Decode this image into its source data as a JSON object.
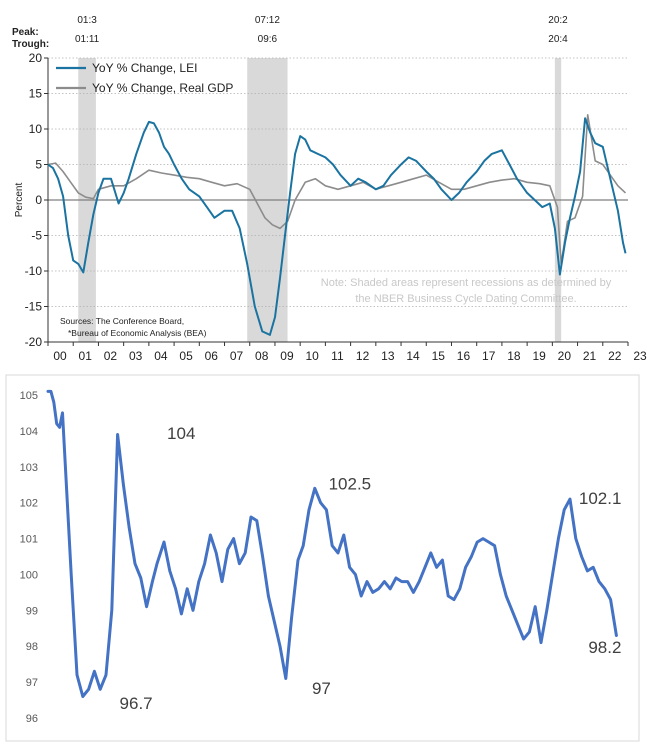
{
  "chart_data": [
    {
      "type": "line",
      "peak_label": "Peak:",
      "trough_label": "Trough:",
      "ylabel": "Percent",
      "ylim": [
        -20,
        20
      ],
      "y_ticks": [
        "20",
        "15",
        "10",
        "5",
        "0",
        "-5",
        "-10",
        "-15",
        "-20"
      ],
      "x_ticks": [
        "00",
        "01",
        "02",
        "03",
        "04",
        "05",
        "06",
        "07",
        "08",
        "09",
        "10",
        "11",
        "12",
        "13",
        "14",
        "15",
        "16",
        "17",
        "18",
        "19",
        "20",
        "21",
        "22",
        "23"
      ],
      "xlim": [
        2000.0,
        2023.0
      ],
      "recessions": [
        {
          "start": 2001.2,
          "end": 2001.9,
          "peak": "01:3",
          "trough": "01:11"
        },
        {
          "start": 2007.9,
          "end": 2009.5,
          "peak": "07:12",
          "trough": "09:6"
        },
        {
          "start": 2020.1,
          "end": 2020.35,
          "peak": "20:2",
          "trough": "20:4"
        }
      ],
      "legend_position": "top-left",
      "note": "Note: Shaded areas represent recessions as determined by the NBER Business Cycle Dating Committee.",
      "sources_line1": "Sources: The Conference Board,",
      "sources_line2": "*Bureau of Economic Analysis (BEA)",
      "colors": {
        "lei": "#1a73a0",
        "gdp": "#8c8c8c",
        "recession": "#d9d9d9",
        "zero": "#7f7f7f",
        "grid": "#b0b0b0"
      },
      "series": [
        {
          "name": "YoY % Change, LEI",
          "x": [
            2000.0,
            2000.2,
            2000.4,
            2000.6,
            2000.8,
            2001.0,
            2001.2,
            2001.4,
            2001.6,
            2001.8,
            2002.0,
            2002.2,
            2002.5,
            2002.8,
            2003.0,
            2003.2,
            2003.5,
            2003.8,
            2004.0,
            2004.2,
            2004.4,
            2004.6,
            2004.8,
            2005.0,
            2005.3,
            2005.6,
            2006.0,
            2006.3,
            2006.6,
            2007.0,
            2007.3,
            2007.6,
            2007.9,
            2008.2,
            2008.5,
            2008.8,
            2009.0,
            2009.2,
            2009.4,
            2009.6,
            2009.8,
            2010.0,
            2010.2,
            2010.4,
            2010.7,
            2011.0,
            2011.3,
            2011.6,
            2012.0,
            2012.3,
            2012.6,
            2013.0,
            2013.3,
            2013.6,
            2014.0,
            2014.3,
            2014.6,
            2015.0,
            2015.3,
            2015.6,
            2016.0,
            2016.3,
            2016.6,
            2017.0,
            2017.3,
            2017.6,
            2018.0,
            2018.3,
            2018.6,
            2019.0,
            2019.3,
            2019.6,
            2019.9,
            2020.1,
            2020.3,
            2020.5,
            2020.7,
            2020.9,
            2021.1,
            2021.3,
            2021.5,
            2021.7,
            2022.0,
            2022.3,
            2022.6,
            2022.8,
            2022.9
          ],
          "values": [
            5.0,
            4.5,
            3.0,
            0.5,
            -5.0,
            -8.5,
            -9.0,
            -10.2,
            -6.0,
            -2.0,
            1.0,
            3.0,
            3.0,
            -0.5,
            1.0,
            3.0,
            6.5,
            9.5,
            11.0,
            10.8,
            9.5,
            7.5,
            6.5,
            5.0,
            3.0,
            1.5,
            0.5,
            -1.0,
            -2.5,
            -1.5,
            -1.5,
            -4.0,
            -9.0,
            -15.0,
            -18.5,
            -19.0,
            -16.5,
            -11.0,
            -5.0,
            1.0,
            6.5,
            9.0,
            8.5,
            7.0,
            6.5,
            6.0,
            5.0,
            3.5,
            2.0,
            3.0,
            2.5,
            1.5,
            2.0,
            3.5,
            5.0,
            6.0,
            5.5,
            4.0,
            3.0,
            1.5,
            0.0,
            1.0,
            2.5,
            4.0,
            5.5,
            6.5,
            7.0,
            5.0,
            3.0,
            1.0,
            0.0,
            -1.0,
            -0.5,
            -4.0,
            -10.5,
            -6.0,
            -2.5,
            0.5,
            4.0,
            11.5,
            9.5,
            8.0,
            7.5,
            3.0,
            -1.5,
            -6.0,
            -7.5
          ]
        },
        {
          "name": "YoY % Change, Real GDP",
          "x": [
            2000.0,
            2000.3,
            2000.6,
            2000.9,
            2001.2,
            2001.5,
            2001.8,
            2002.0,
            2002.5,
            2003.0,
            2003.5,
            2004.0,
            2004.5,
            2005.0,
            2005.5,
            2006.0,
            2006.5,
            2007.0,
            2007.5,
            2008.0,
            2008.3,
            2008.6,
            2008.9,
            2009.2,
            2009.5,
            2009.8,
            2010.2,
            2010.6,
            2011.0,
            2011.5,
            2012.0,
            2012.5,
            2013.0,
            2013.5,
            2014.0,
            2014.5,
            2015.0,
            2015.5,
            2016.0,
            2016.5,
            2017.0,
            2017.5,
            2018.0,
            2018.5,
            2019.0,
            2019.5,
            2019.9,
            2020.2,
            2020.35,
            2020.6,
            2020.9,
            2021.2,
            2021.4,
            2021.7,
            2022.0,
            2022.3,
            2022.6,
            2022.9
          ],
          "values": [
            5.0,
            5.2,
            4.0,
            2.5,
            1.0,
            0.4,
            0.2,
            1.5,
            2.0,
            2.0,
            3.0,
            4.2,
            3.8,
            3.5,
            3.2,
            3.0,
            2.5,
            2.0,
            2.3,
            1.5,
            -0.5,
            -2.5,
            -3.5,
            -4.0,
            -3.0,
            0.0,
            2.5,
            3.0,
            2.0,
            1.5,
            2.0,
            2.5,
            1.5,
            2.0,
            2.5,
            3.0,
            3.5,
            2.5,
            1.5,
            1.5,
            2.0,
            2.5,
            2.8,
            3.0,
            2.5,
            2.3,
            2.0,
            -1.0,
            -9.0,
            -3.0,
            -2.5,
            0.5,
            12.0,
            5.5,
            5.0,
            3.5,
            2.0,
            1.0
          ]
        }
      ]
    },
    {
      "type": "line",
      "ylim": [
        96,
        105
      ],
      "y_ticks": [
        "105",
        "104",
        "103",
        "102",
        "101",
        "100",
        "99",
        "98",
        "97",
        "96"
      ],
      "xlim": [
        0,
        100
      ],
      "color": "#4472c4",
      "annotations": [
        {
          "text": "104",
          "x": 18.8,
          "y": 104.0
        },
        {
          "text": "96.7",
          "x": 11.3,
          "y": 96.7
        },
        {
          "text": "102.5",
          "x": 47.0,
          "y": 102.5
        },
        {
          "text": "97",
          "x": 43.1,
          "y": 97.0
        },
        {
          "text": "102.1",
          "x": 90.5,
          "y": 102.1
        },
        {
          "text": "98.2",
          "x": 96.7,
          "y": 98.2
        }
      ],
      "series": [
        {
          "x": [
            0.0,
            0.5,
            1.0,
            1.5,
            2.0,
            2.5,
            3.0,
            4.0,
            5.0,
            6.0,
            7.0,
            8.0,
            9.0,
            10.0,
            11.0,
            12.0,
            13.0,
            14.0,
            15.0,
            16.0,
            17.0,
            18.0,
            18.8,
            20.0,
            21.0,
            22.0,
            23.0,
            24.0,
            25.0,
            26.0,
            27.0,
            28.0,
            29.0,
            30.0,
            31.0,
            32.0,
            33.0,
            34.0,
            35.0,
            36.0,
            37.0,
            38.0,
            39.0,
            40.0,
            41.0,
            42.0,
            43.1,
            44.0,
            45.0,
            46.0,
            47.0,
            48.0,
            49.0,
            50.0,
            51.0,
            52.0,
            53.0,
            54.0,
            55.0,
            56.0,
            57.0,
            58.0,
            59.0,
            60.0,
            61.0,
            62.0,
            63.0,
            64.0,
            65.0,
            66.0,
            67.0,
            68.0,
            69.0,
            70.0,
            71.0,
            72.0,
            73.0,
            74.0,
            75.0,
            76.0,
            77.0,
            78.0,
            79.0,
            80.0,
            81.0,
            82.0,
            83.0,
            84.0,
            85.0,
            86.0,
            87.0,
            88.0,
            89.0,
            90.0,
            91.0,
            92.0,
            93.0,
            94.0,
            95.0,
            96.0,
            97.0,
            98.0
          ],
          "values": [
            105.1,
            105.1,
            104.8,
            104.2,
            104.1,
            104.5,
            103.0,
            100.0,
            97.2,
            96.6,
            96.8,
            97.3,
            96.8,
            97.2,
            99.0,
            103.9,
            102.5,
            101.3,
            100.3,
            99.9,
            99.1,
            99.8,
            100.3,
            100.9,
            100.1,
            99.6,
            98.9,
            99.6,
            99.0,
            99.8,
            100.3,
            101.1,
            100.6,
            99.8,
            100.7,
            101.0,
            100.3,
            100.6,
            101.6,
            101.5,
            100.5,
            99.4,
            98.7,
            98.0,
            97.1,
            98.8,
            100.4,
            100.8,
            101.8,
            102.4,
            102.0,
            101.8,
            100.8,
            100.6,
            101.1,
            100.2,
            100.0,
            99.4,
            99.8,
            99.5,
            99.6,
            99.8,
            99.6,
            99.9,
            99.8,
            99.8,
            99.5,
            99.8,
            100.2,
            100.6,
            100.2,
            100.4,
            99.4,
            99.3,
            99.6,
            100.2,
            100.5,
            100.9,
            101.0,
            100.9,
            100.8,
            100.0,
            99.4,
            99.0,
            98.6,
            98.2,
            98.4,
            99.1,
            98.1,
            99.0,
            100.0,
            101.0,
            101.8,
            102.1,
            101.0,
            100.5,
            100.1,
            100.2,
            99.8,
            99.6,
            99.3,
            98.3
          ]
        }
      ]
    }
  ]
}
